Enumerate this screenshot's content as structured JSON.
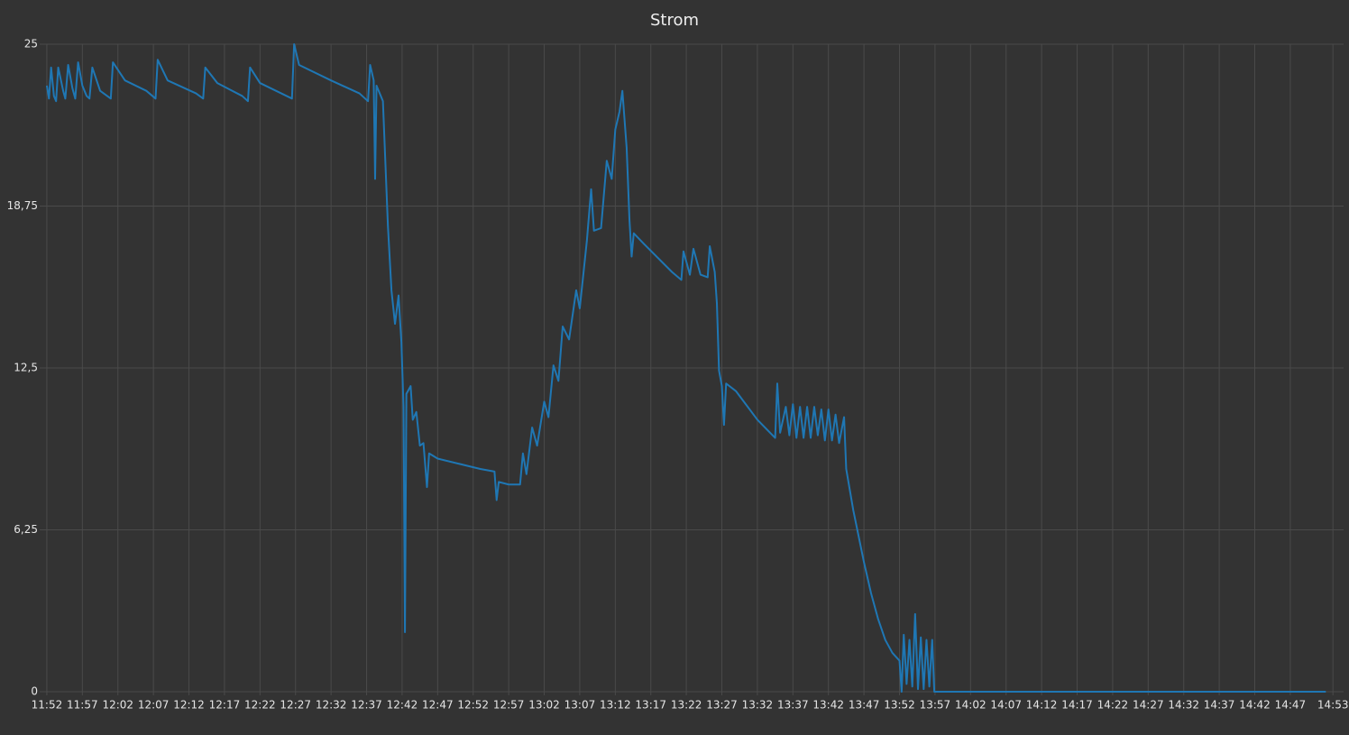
{
  "chart_data": {
    "type": "line",
    "title": "Strom",
    "x": [
      712,
      712.3,
      712.6,
      713,
      713.3,
      713.6,
      714.3,
      714.6,
      715,
      715.6,
      716,
      716.4,
      717,
      717.6,
      718,
      718.4,
      719.5,
      721,
      721.3,
      723,
      726,
      727.3,
      727.6,
      729,
      733,
      734,
      734.3,
      736,
      739.5,
      740.3,
      740.6,
      742,
      746.5,
      746.8,
      747.5,
      752,
      756,
      757.2,
      757.5,
      758,
      758.2,
      758.4,
      759.3,
      760,
      760.5,
      761,
      761.5,
      761.9,
      762.2,
      762.4,
      762.6,
      763.2,
      763.5,
      764,
      764.5,
      765,
      765.5,
      765.8,
      767,
      770,
      773,
      775,
      775.3,
      775.6,
      777,
      778.6,
      779,
      779.5,
      780.3,
      781,
      782,
      782.6,
      783.3,
      784,
      784.6,
      785.5,
      786.5,
      787,
      788,
      788.6,
      789,
      790,
      790.8,
      791.5,
      792,
      792.6,
      793,
      793.6,
      794,
      794.3,
      794.6,
      796,
      800,
      801.3,
      801.6,
      802.5,
      803,
      804,
      805,
      805.3,
      806,
      806.3,
      806.6,
      807,
      807.3,
      807.6,
      809,
      812,
      814.5,
      814.8,
      815.2,
      816,
      816.5,
      817,
      817.5,
      818,
      818.5,
      819,
      819.5,
      820,
      820.5,
      821,
      821.5,
      822,
      822.5,
      823,
      823.5,
      824.2,
      824.5,
      825.5,
      827,
      828,
      829,
      830,
      831,
      832,
      832.3,
      832.6,
      833,
      833.4,
      833.8,
      834.2,
      834.6,
      835,
      835.4,
      835.8,
      836.2,
      836.6,
      836.9,
      837.5,
      892
    ],
    "series": [
      {
        "color": "#1f77b4",
        "values": [
          23.4,
          22.9,
          24.1,
          23,
          22.8,
          24.1,
          23.2,
          22.9,
          24.2,
          23.3,
          22.9,
          24.3,
          23.4,
          23,
          22.9,
          24.1,
          23.2,
          22.9,
          24.3,
          23.6,
          23.2,
          22.9,
          24.4,
          23.6,
          23.1,
          22.9,
          24.1,
          23.5,
          23,
          22.8,
          24.1,
          23.5,
          22.9,
          25,
          24.2,
          23.6,
          23.1,
          22.8,
          24.2,
          23.6,
          19.8,
          23.4,
          22.8,
          18,
          15.5,
          14.2,
          15.3,
          13.5,
          11,
          2.3,
          11.5,
          11.8,
          10.5,
          10.8,
          9.5,
          9.6,
          7.9,
          9.2,
          9,
          8.8,
          8.6,
          8.5,
          7.4,
          8.1,
          8,
          8,
          9.2,
          8.4,
          10.2,
          9.5,
          11.2,
          10.6,
          12.6,
          12,
          14.1,
          13.6,
          15.5,
          14.8,
          17.4,
          19.4,
          17.8,
          17.9,
          20.5,
          19.8,
          21.7,
          22.4,
          23.2,
          21,
          18.2,
          16.8,
          17.7,
          17.3,
          16.2,
          15.9,
          17,
          16.1,
          17.1,
          16.1,
          16,
          17.2,
          16.2,
          15,
          12.4,
          11.8,
          10.3,
          11.9,
          11.6,
          10.5,
          9.8,
          11.9,
          10,
          11,
          9.9,
          11.1,
          9.8,
          11,
          9.8,
          11,
          9.8,
          11,
          9.9,
          10.9,
          9.7,
          10.9,
          9.7,
          10.7,
          9.6,
          10.6,
          8.6,
          7,
          5,
          3.8,
          2.8,
          2,
          1.5,
          1.2,
          0,
          2.2,
          0.3,
          2,
          0.2,
          3,
          0.1,
          2.1,
          0.1,
          2,
          0.2,
          2,
          0,
          0,
          0
        ]
      }
    ],
    "xlim": [
      711.5,
      894.5
    ],
    "xticks": [
      {
        "value": 712,
        "label": "11:52"
      },
      {
        "value": 717,
        "label": "11:57"
      },
      {
        "value": 722,
        "label": "12:02"
      },
      {
        "value": 727,
        "label": "12:07"
      },
      {
        "value": 732,
        "label": "12:12"
      },
      {
        "value": 737,
        "label": "12:17"
      },
      {
        "value": 742,
        "label": "12:22"
      },
      {
        "value": 747,
        "label": "12:27"
      },
      {
        "value": 752,
        "label": "12:32"
      },
      {
        "value": 757,
        "label": "12:37"
      },
      {
        "value": 762,
        "label": "12:42"
      },
      {
        "value": 767,
        "label": "12:47"
      },
      {
        "value": 772,
        "label": "12:52"
      },
      {
        "value": 777,
        "label": "12:57"
      },
      {
        "value": 782,
        "label": "13:02"
      },
      {
        "value": 787,
        "label": "13:07"
      },
      {
        "value": 792,
        "label": "13:12"
      },
      {
        "value": 797,
        "label": "13:17"
      },
      {
        "value": 802,
        "label": "13:22"
      },
      {
        "value": 807,
        "label": "13:27"
      },
      {
        "value": 812,
        "label": "13:32"
      },
      {
        "value": 817,
        "label": "13:37"
      },
      {
        "value": 822,
        "label": "13:42"
      },
      {
        "value": 827,
        "label": "13:47"
      },
      {
        "value": 832,
        "label": "13:52"
      },
      {
        "value": 837,
        "label": "13:57"
      },
      {
        "value": 842,
        "label": "14:02"
      },
      {
        "value": 847,
        "label": "14:07"
      },
      {
        "value": 852,
        "label": "14:12"
      },
      {
        "value": 857,
        "label": "14:17"
      },
      {
        "value": 862,
        "label": "14:22"
      },
      {
        "value": 867,
        "label": "14:27"
      },
      {
        "value": 872,
        "label": "14:32"
      },
      {
        "value": 877,
        "label": "14:37"
      },
      {
        "value": 882,
        "label": "14:42"
      },
      {
        "value": 887,
        "label": "14:47"
      },
      {
        "value": 893,
        "label": "14:53"
      }
    ],
    "ylim": [
      0,
      25
    ],
    "yticks": [
      0,
      {
        "value": 6.25,
        "label": "6,25"
      },
      {
        "value": 12.5,
        "label": "12,5"
      },
      {
        "value": 18.75,
        "label": "18,75"
      },
      25
    ],
    "grid": true
  }
}
